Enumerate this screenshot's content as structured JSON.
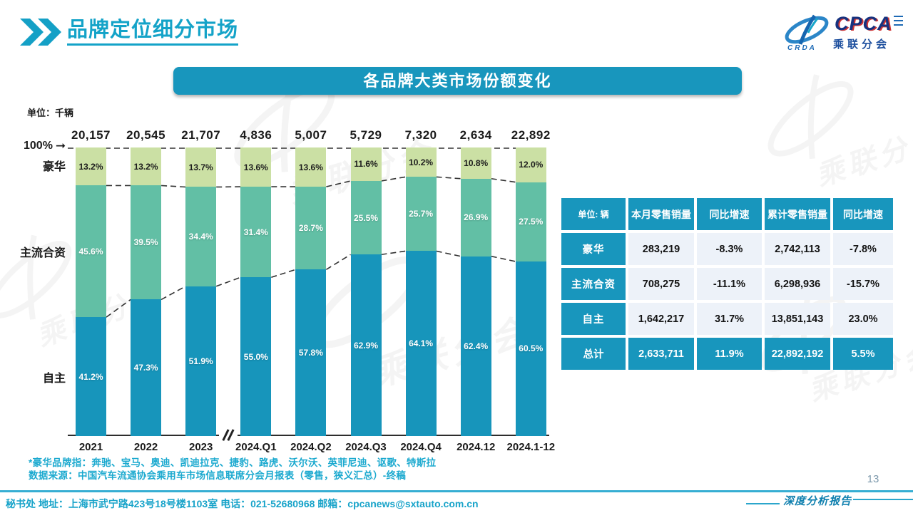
{
  "page": {
    "title": "品牌定位细分市场",
    "page_number": "13",
    "report_label": "深度分析报告",
    "footer": "秘书处  地址：上海市武宁路423号18号楼1103室 电话：021-52680968   邮箱：cpcanews@sxtauto.com.cn"
  },
  "logo": {
    "cpca": "CPCA",
    "crda": "CRDA",
    "cn": "乘联分会"
  },
  "chart_banner": "各品牌大类市场份额变化",
  "unit_label": "单位：千辆",
  "axis_marker": "100%",
  "series_labels": {
    "luxury": "豪华",
    "joint": "主流合资",
    "domestic": "自主"
  },
  "chart_data": {
    "type": "bar",
    "stacked": true,
    "unit": "千辆",
    "title": "各品牌大类市场份额变化",
    "ylim": [
      0,
      100
    ],
    "grid": false,
    "categories": [
      "2021",
      "2022",
      "2023",
      "2024.Q1",
      "2024.Q2",
      "2024.Q3",
      "2024.Q4",
      "2024.12",
      "2024.1-12"
    ],
    "totals": [
      "20,157",
      "20,545",
      "21,707",
      "4,836",
      "5,007",
      "5,729",
      "7,320",
      "2,634",
      "22,892"
    ],
    "series": [
      {
        "name": "豪华",
        "color": "#cbe0a4",
        "values": [
          13.2,
          13.2,
          13.7,
          13.6,
          13.6,
          11.6,
          10.2,
          10.8,
          12.0
        ]
      },
      {
        "name": "主流合资",
        "color": "#62bfa5",
        "values": [
          45.6,
          39.5,
          34.4,
          31.4,
          28.7,
          25.5,
          25.7,
          26.9,
          27.5
        ]
      },
      {
        "name": "自主",
        "color": "#1795bb",
        "values": [
          41.2,
          47.3,
          51.9,
          55.0,
          57.8,
          62.9,
          64.1,
          62.4,
          60.5
        ]
      }
    ],
    "annotations": {
      "axis_break_between": [
        "2023",
        "2024.Q1"
      ],
      "top_line": "100%"
    }
  },
  "table": {
    "headers": [
      "单位: 辆",
      "本月零售销量",
      "同比增速",
      "累计零售销量",
      "同比增速"
    ],
    "rows": [
      {
        "label": "豪华",
        "cells": [
          "283,219",
          "-8.3%",
          "2,742,113",
          "-7.8%"
        ],
        "total": false
      },
      {
        "label": "主流合资",
        "cells": [
          "708,275",
          "-11.1%",
          "6,298,936",
          "-15.7%"
        ],
        "total": false
      },
      {
        "label": "自主",
        "cells": [
          "1,642,217",
          "31.7%",
          "13,851,143",
          "23.0%"
        ],
        "total": false
      },
      {
        "label": "总计",
        "cells": [
          "2,633,711",
          "11.9%",
          "22,892,192",
          "5.5%"
        ],
        "total": true
      }
    ]
  },
  "footnotes": [
    "*豪华品牌指：奔驰、宝马、奥迪、凯迪拉克、捷豹、路虎、沃尔沃、英菲尼迪、讴歌、特斯拉",
    "数据来源：中国汽车流通协会乘用车市场信息联席分会月报表（零售，狭义汇总）-终稿"
  ],
  "colors": {
    "accent_teal": "#1896bd",
    "title_teal": "#14a3c8",
    "luxury_segment": "#cbe0a4",
    "joint_segment": "#62bfa5",
    "domestic_segment": "#1795bb",
    "table_row_bg": "#edf2f9",
    "footnote_teal": "#1ba9cf",
    "dash_line": "#333333"
  }
}
